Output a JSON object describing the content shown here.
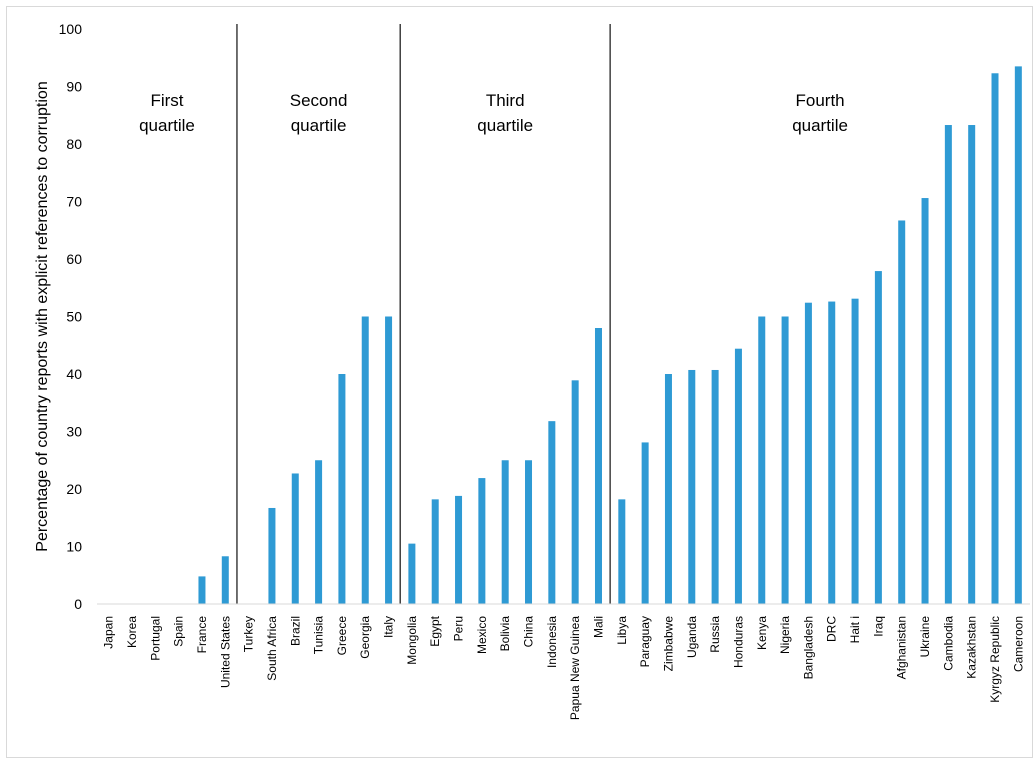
{
  "chart_data": {
    "type": "bar",
    "title": "",
    "xlabel": "",
    "ylabel": "Percentage of country reports with explicit references to corruption",
    "ylim": [
      0,
      100
    ],
    "yticks": [
      0,
      10,
      20,
      30,
      40,
      50,
      60,
      70,
      80,
      90,
      100
    ],
    "grid": false,
    "legend": "none",
    "bar_color": "#2e9ad4",
    "divider_color": "#404040",
    "categories": [
      "Japan",
      "Korea",
      "Portugal",
      "Spain",
      "France",
      "United States",
      "Turkey",
      "South Africa",
      "Brazil",
      "Tunisia",
      "Greece",
      "Georgia",
      "Italy",
      "Mongolia",
      "Egypt",
      "Peru",
      "Mexico",
      "Bolivia",
      "China",
      "Indonesia",
      "Papua New Guinea",
      "Mali",
      "Libya",
      "Paraguay",
      "Zimbabwe",
      "Uganda",
      "Russia",
      "Honduras",
      "Kenya",
      "Nigeria",
      "Bangladesh",
      "DRC",
      "Haiti",
      "Iraq",
      "Afghanistan",
      "Ukraine",
      "Cambodia",
      "Kazakhstan",
      "Kyrgyz Republic",
      "Cameroon"
    ],
    "display_labels": [
      "Japan",
      "Korea",
      "Portugal",
      "Spain",
      "France",
      "United States",
      "Turkey",
      "South Africa",
      "Brazil",
      "Tunisia",
      "Greece",
      "Georgia",
      "Italy",
      "Mongolia",
      "Egypt",
      "Peru",
      "Mexico",
      "Bolivia",
      "China",
      "Indonesia",
      "Papua New Guinea",
      "Mali",
      "Libya",
      "Paraguay",
      "Zimbabwe",
      "Uganda",
      "Russia",
      "Honduras",
      "Kenya",
      "Nigeria",
      "Bangladesh",
      "DRC",
      "Hait i",
      "Iraq",
      "Afghanistan",
      "Ukraine",
      "Cambodia",
      "Kazakhstan",
      "Kyrgyz Republic",
      "Cameroon"
    ],
    "values": [
      0,
      0,
      0,
      0,
      4.8,
      8.3,
      0,
      16.7,
      22.7,
      25,
      40,
      50,
      50,
      10.5,
      18.2,
      18.8,
      21.9,
      25,
      25,
      31.8,
      38.9,
      48,
      18.2,
      28.1,
      40,
      40.7,
      40.7,
      44.4,
      50,
      50,
      52.4,
      52.6,
      53.1,
      57.9,
      66.7,
      70.6,
      83.3,
      83.3,
      92.3,
      93.5
    ],
    "quartiles": [
      {
        "lines": [
          "First",
          "quartile"
        ],
        "start_index": 0,
        "end_index": 5
      },
      {
        "lines": [
          "Second",
          "quartile"
        ],
        "start_index": 6,
        "end_index": 12
      },
      {
        "lines": [
          "Third",
          "quartile"
        ],
        "start_index": 13,
        "end_index": 21
      },
      {
        "lines": [
          "Fourth",
          "quartile"
        ],
        "start_index": 22,
        "end_index": 39
      }
    ]
  }
}
